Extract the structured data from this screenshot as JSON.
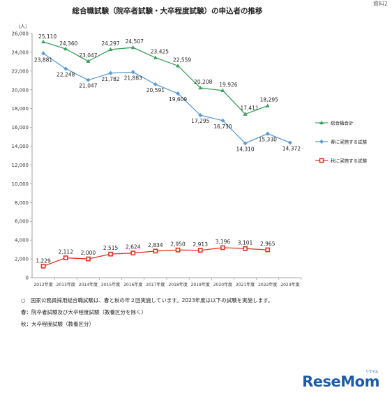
{
  "header": {
    "corner_tag": "資料2"
  },
  "chart_data": {
    "type": "line",
    "title": "総合職試験（院卒者試験・大卒程度試験）の申込者の推移",
    "unit_label": "（人）",
    "categories": [
      "2012年度",
      "2013年度",
      "2014年度",
      "2015年度",
      "2016年度",
      "2017年度",
      "2018年度",
      "2019年度",
      "2020年度",
      "2021年度",
      "2022年度",
      "2023年度"
    ],
    "ylim": [
      0,
      26000
    ],
    "yticks": [
      "0",
      "2,000",
      "4,000",
      "6,000",
      "8,000",
      "10,000",
      "12,000",
      "14,000",
      "16,000",
      "18,000",
      "20,000",
      "22,000",
      "24,000",
      "26,000"
    ],
    "grid": false,
    "legend_position": "right",
    "series": [
      {
        "name": "総合職合計",
        "color": "#3aa35c",
        "marker": "triangle",
        "values": [
          25110,
          24360,
          23047,
          24297,
          24507,
          23425,
          22559,
          20208,
          19926,
          17411,
          18295,
          null
        ],
        "labels": [
          "25,110",
          "24,360",
          "23,047",
          "24,297",
          "24,507",
          "23,425",
          "22,559",
          "20,208",
          "19,926",
          "17,411",
          "18,295",
          null
        ]
      },
      {
        "name": "春に実施する試験",
        "color": "#5b9bd5",
        "marker": "diamond",
        "values": [
          23881,
          22248,
          21047,
          21782,
          21883,
          20591,
          19609,
          17295,
          16730,
          14310,
          15330,
          14372
        ],
        "labels": [
          "23,881",
          "22,248",
          "21,047",
          "21,782",
          "21,883",
          "20,591",
          "19,609",
          "17,295",
          "16,730",
          "14,310",
          "15,330",
          "14,372"
        ]
      },
      {
        "name": "秋に実施する試験",
        "color": "#e8321e",
        "marker": "square",
        "values": [
          1229,
          2112,
          2000,
          2515,
          2624,
          2834,
          2950,
          2913,
          3196,
          3101,
          2965,
          null
        ],
        "labels": [
          "1,229",
          "2,112",
          "2,000",
          "2,515",
          "2,624",
          "2,834",
          "2,950",
          "2,913",
          "3,196",
          "3,101",
          "2,965",
          null
        ]
      }
    ]
  },
  "notes": {
    "line1": "○　国家公務員採用総合職試験は、春と秋の年２回実施しています。2023年度は以下の試験を実施します。",
    "line2": "春：院卒者試験及び大卒程度試験（教養区分を除く）",
    "line3": "秋：大卒程度試験（教養区分）"
  },
  "logo": {
    "text": "ReseMom",
    "small": "リセマム"
  }
}
